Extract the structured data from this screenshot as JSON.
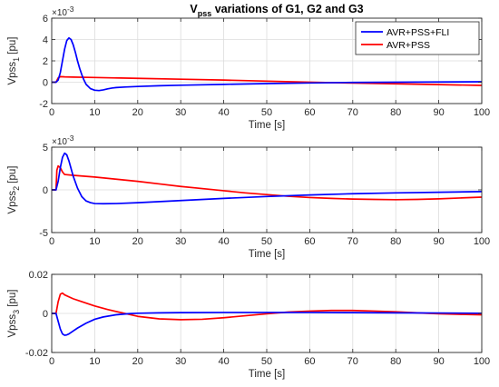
{
  "figure": {
    "title_main": "V",
    "title_sub": "pss",
    "title_rest": " variations of G1, G2 and G3"
  },
  "legend": {
    "entries": [
      {
        "label": "AVR+PSS+FLI",
        "color": "#0000ff"
      },
      {
        "label": "AVR+PSS",
        "color": "#ff0000"
      }
    ]
  },
  "chart_data": [
    {
      "type": "line",
      "ylabel_main": "Vpss",
      "ylabel_sub": "1",
      "ylabel_unit": " [pu]",
      "xlabel": "Time [s]",
      "exponent_base": "×10",
      "exponent_power": "-3",
      "xlim": [
        0,
        100
      ],
      "ylim": [
        -2,
        6
      ],
      "xticks": [
        0,
        10,
        20,
        30,
        40,
        50,
        60,
        70,
        80,
        90,
        100
      ],
      "yticks": [
        -2,
        0,
        2,
        4,
        6
      ],
      "grid": true,
      "legend_position": "top-right",
      "series": [
        {
          "name": "AVR+PSS+FLI",
          "color": "#0000ff",
          "x": [
            0,
            1,
            1.5,
            2,
            2.5,
            3,
            3.5,
            4,
            4.5,
            5,
            5.5,
            6,
            6.5,
            7,
            7.5,
            8,
            9,
            10,
            11,
            12,
            13,
            14,
            15,
            17,
            20,
            25,
            30,
            40,
            50,
            60,
            70,
            80,
            90,
            100
          ],
          "y": [
            0,
            0,
            0.2,
            0.9,
            2.0,
            3.1,
            3.9,
            4.15,
            4.0,
            3.5,
            2.8,
            2.0,
            1.3,
            0.7,
            0.2,
            -0.2,
            -0.6,
            -0.75,
            -0.78,
            -0.72,
            -0.62,
            -0.55,
            -0.5,
            -0.45,
            -0.4,
            -0.33,
            -0.28,
            -0.2,
            -0.13,
            -0.07,
            -0.02,
            0.0,
            0.02,
            0.04
          ]
        },
        {
          "name": "AVR+PSS",
          "color": "#ff0000",
          "x": [
            0,
            1,
            1.5,
            2,
            3,
            5,
            10,
            20,
            30,
            40,
            50,
            60,
            70,
            80,
            90,
            100
          ],
          "y": [
            0,
            0,
            0.4,
            0.52,
            0.5,
            0.48,
            0.44,
            0.36,
            0.28,
            0.2,
            0.1,
            0.0,
            -0.08,
            -0.15,
            -0.22,
            -0.3
          ]
        }
      ]
    },
    {
      "type": "line",
      "ylabel_main": "Vpss",
      "ylabel_sub": "2",
      "ylabel_unit": " [pu]",
      "xlabel": "Time [s]",
      "exponent_base": "×10",
      "exponent_power": "-3",
      "xlim": [
        0,
        100
      ],
      "ylim": [
        -5,
        5
      ],
      "xticks": [
        0,
        10,
        20,
        30,
        40,
        50,
        60,
        70,
        80,
        90,
        100
      ],
      "yticks": [
        -5,
        0,
        5
      ],
      "grid": true,
      "series": [
        {
          "name": "AVR+PSS+FLI",
          "color": "#0000ff",
          "x": [
            0,
            1,
            1.5,
            2,
            2.5,
            3,
            3.5,
            4,
            5,
            6,
            7,
            8,
            9,
            10,
            12,
            15,
            20,
            30,
            40,
            50,
            60,
            70,
            80,
            90,
            100
          ],
          "y": [
            0,
            0,
            1.0,
            2.6,
            3.8,
            4.3,
            4.1,
            3.4,
            1.6,
            0.2,
            -0.8,
            -1.3,
            -1.5,
            -1.6,
            -1.62,
            -1.6,
            -1.5,
            -1.25,
            -1.0,
            -0.78,
            -0.6,
            -0.45,
            -0.35,
            -0.28,
            -0.2
          ]
        },
        {
          "name": "AVR+PSS",
          "color": "#ff0000",
          "x": [
            0,
            1,
            1.2,
            1.5,
            2,
            2.5,
            3,
            5,
            10,
            15,
            20,
            25,
            30,
            35,
            40,
            45,
            50,
            55,
            60,
            65,
            70,
            75,
            80,
            85,
            90,
            95,
            100
          ],
          "y": [
            0,
            0,
            2.3,
            2.8,
            2.6,
            2.1,
            1.8,
            1.7,
            1.5,
            1.25,
            1.0,
            0.7,
            0.4,
            0.15,
            -0.1,
            -0.35,
            -0.55,
            -0.75,
            -0.9,
            -1.0,
            -1.08,
            -1.12,
            -1.15,
            -1.12,
            -1.05,
            -0.95,
            -0.85
          ]
        }
      ]
    },
    {
      "type": "line",
      "ylabel_main": "Vpss",
      "ylabel_sub": "3",
      "ylabel_unit": " [pu]",
      "xlabel": "Time [s]",
      "xlim": [
        0,
        100
      ],
      "ylim": [
        -0.02,
        0.02
      ],
      "xticks": [
        0,
        10,
        20,
        30,
        40,
        50,
        60,
        70,
        80,
        90,
        100
      ],
      "yticks": [
        -0.02,
        0,
        0.02
      ],
      "ytick_labels": [
        "-0.02",
        "0",
        "0.02"
      ],
      "grid": true,
      "series": [
        {
          "name": "AVR+PSS+FLI",
          "color": "#0000ff",
          "x": [
            0,
            1,
            1.5,
            2,
            2.5,
            3,
            3.5,
            4,
            5,
            6,
            8,
            10,
            12,
            15,
            18,
            20,
            25,
            30,
            40,
            50,
            60,
            70,
            80,
            90,
            100
          ],
          "y": [
            0,
            0,
            -0.004,
            -0.008,
            -0.0105,
            -0.0112,
            -0.011,
            -0.0105,
            -0.009,
            -0.0075,
            -0.005,
            -0.003,
            -0.0018,
            -0.0007,
            -0.0001,
            0.0001,
            0.0003,
            0.0004,
            0.0005,
            0.0005,
            0.0005,
            0.0004,
            0.0003,
            0.0002,
            0.0001
          ]
        },
        {
          "name": "AVR+PSS",
          "color": "#ff0000",
          "x": [
            0,
            1,
            1.5,
            2,
            2.5,
            3,
            4,
            5,
            7,
            10,
            13,
            16,
            20,
            25,
            30,
            35,
            40,
            45,
            50,
            55,
            60,
            65,
            70,
            75,
            80,
            85,
            90,
            95,
            100
          ],
          "y": [
            0,
            0,
            0.006,
            0.0098,
            0.0104,
            0.0095,
            0.0085,
            0.0075,
            0.006,
            0.0038,
            0.002,
            0.0005,
            -0.0015,
            -0.0028,
            -0.0032,
            -0.003,
            -0.0022,
            -0.0012,
            -0.0002,
            0.0007,
            0.0012,
            0.0015,
            0.0015,
            0.0012,
            0.0008,
            0.0003,
            -0.0002,
            -0.0005,
            -0.0007
          ]
        }
      ]
    }
  ]
}
